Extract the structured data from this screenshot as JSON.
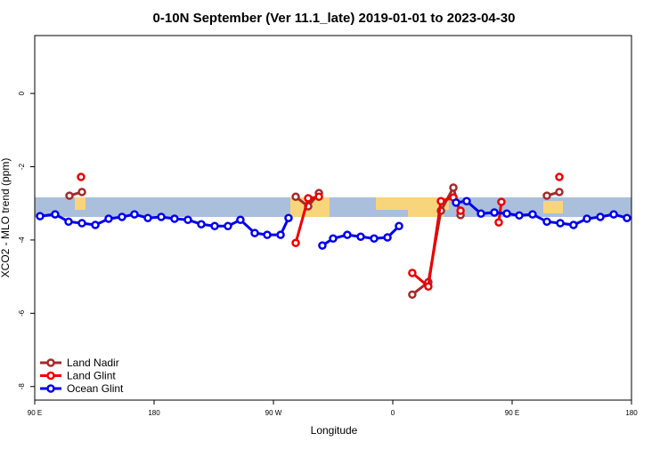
{
  "chart_data": {
    "type": "line",
    "title": "0-10N September (Ver 11.1_late)   2019-01-01 to 2023-04-30",
    "x_label": "Longitude",
    "y_label": "XCO2 - MLO trend (ppm)",
    "xlim": [
      90,
      540
    ],
    "xticks": [
      {
        "value": 90,
        "label": "90 E"
      },
      {
        "value": 180,
        "label": "180"
      },
      {
        "value": 270,
        "label": "90 W"
      },
      {
        "value": 360,
        "label": "0"
      },
      {
        "value": 450,
        "label": "90 E"
      },
      {
        "value": 540,
        "label": "180"
      }
    ],
    "ylim": [
      -8.37,
      1.58
    ],
    "yticks": [
      0,
      -2,
      -4,
      -6,
      -8
    ],
    "legend": "bottom-left",
    "series": [
      {
        "name": "Land Nadir",
        "color": "#a52a2a",
        "x": [
          116.2,
          125.6,
          null,
          286.8,
          296.2,
          304.3,
          null,
          374.7,
          386.8,
          396.3,
          405.7,
          411.1,
          null,
          476.2,
          485.6
        ],
        "values": [
          -2.79,
          -2.69,
          null,
          -2.82,
          -3.08,
          -2.72,
          null,
          -5.49,
          -5.15,
          -3.2,
          -2.57,
          -3.32,
          null,
          -2.79,
          -2.69
        ]
      },
      {
        "name": "Land Glint",
        "color": "#ee0000",
        "x": [
          124.9,
          null,
          286.8,
          296.2,
          304.3,
          null,
          374.7,
          386.8,
          396.3,
          405.7,
          411.1,
          null,
          439.9,
          441.9,
          null,
          485.6
        ],
        "values": [
          -2.28,
          null,
          -4.08,
          -2.86,
          -2.82,
          null,
          -4.9,
          -5.27,
          -2.94,
          -2.84,
          -3.2,
          null,
          -3.52,
          -2.96,
          null,
          -2.28
        ]
      },
      {
        "name": "Ocean Glint",
        "color": "#0000ee",
        "x": [
          94.0,
          105.4,
          115.5,
          125.6,
          135.7,
          145.7,
          155.8,
          165.2,
          175.3,
          185.4,
          195.4,
          205.5,
          215.6,
          225.7,
          235.7,
          245.1,
          255.9,
          265.3,
          275.4,
          281.4,
          null,
          306.9,
          315.0,
          325.7,
          335.8,
          345.9,
          356.0,
          364.7,
          null,
          407.7,
          415.7,
          426.5,
          436.6,
          446.0,
          455.4,
          465.4,
          476.2,
          486.3,
          496.3,
          506.4,
          516.5,
          526.6,
          536.6
        ],
        "values": [
          -3.35,
          -3.3,
          -3.5,
          -3.54,
          -3.59,
          -3.42,
          -3.37,
          -3.3,
          -3.4,
          -3.37,
          -3.42,
          -3.45,
          -3.57,
          -3.62,
          -3.62,
          -3.45,
          -3.81,
          -3.86,
          -3.86,
          -3.4,
          null,
          -4.15,
          -3.96,
          -3.86,
          -3.91,
          -3.96,
          -3.93,
          -3.62,
          null,
          -2.98,
          -2.94,
          -3.28,
          -3.25,
          -3.28,
          -3.33,
          -3.3,
          -3.5,
          -3.54,
          -3.59,
          -3.42,
          -3.37,
          -3.3,
          -3.4
        ]
      }
    ]
  }
}
